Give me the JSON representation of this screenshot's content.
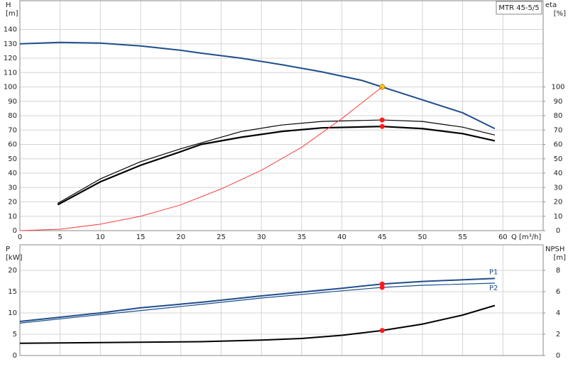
{
  "chart_data": [
    {
      "type": "line",
      "model": "MTR 45-5/5",
      "ylabel": "H",
      "yunit": "[m]",
      "y2label": "eta",
      "y2unit": "[%]",
      "xlabel": "Q [m³/h]",
      "xlim": [
        0,
        65
      ],
      "xticks": [
        0,
        5,
        10,
        15,
        20,
        25,
        30,
        35,
        40,
        45,
        50,
        55,
        60
      ],
      "ylim": [
        0,
        160
      ],
      "yticks": [
        0,
        10,
        20,
        30,
        40,
        50,
        60,
        70,
        80,
        90,
        100,
        110,
        120,
        130,
        140
      ],
      "y2lim": [
        0,
        160
      ],
      "y2ticks": [
        0,
        10,
        20,
        30,
        40,
        50,
        60,
        70,
        80,
        90,
        100
      ],
      "grid": true,
      "series": [
        {
          "color": "#1f4e8c",
          "width": 2,
          "x": [
            0,
            5,
            10,
            15,
            20,
            22.5,
            27.5,
            32.5,
            37.5,
            42.5,
            45,
            50,
            55,
            59
          ],
          "values": [
            130,
            131,
            130.5,
            128.5,
            125.5,
            123.5,
            120,
            115.5,
            110.5,
            104.5,
            100,
            91,
            82,
            71
          ],
          "marker_index": 10,
          "marker_color": "#ffd21f"
        },
        {
          "color": "#000000",
          "width": 1.2,
          "axis": "y2",
          "x": [
            4.7,
            10,
            15,
            20,
            22.5,
            27.5,
            32.5,
            37.5,
            45,
            50,
            55,
            59
          ],
          "values": [
            19,
            36,
            48,
            57,
            61,
            69,
            73.5,
            76,
            77,
            76,
            72,
            66.5
          ],
          "marker_index": 8,
          "marker_color": "#ff1a1a"
        },
        {
          "color": "#000000",
          "width": 2.2,
          "axis": "y2",
          "x": [
            4.7,
            10,
            15,
            20,
            22.5,
            27.5,
            32.5,
            37.5,
            45,
            50,
            55,
            59
          ],
          "values": [
            18,
            34,
            45.5,
            55,
            60,
            65,
            69,
            71.5,
            72.5,
            71,
            67.5,
            62.5
          ],
          "marker_index": 8,
          "marker_color": "#ff1a1a"
        },
        {
          "color": "#ff3b3b",
          "width": 1,
          "x": [
            0,
            5,
            10,
            15,
            20,
            25,
            30,
            35,
            40,
            45
          ],
          "values": [
            0,
            1,
            4.5,
            10,
            18,
            29,
            42,
            58,
            78,
            100
          ]
        }
      ]
    },
    {
      "type": "line",
      "ylabel": "P",
      "yunit": "[kW]",
      "y2label": "NPSH",
      "y2unit": "[m]",
      "xlim": [
        0,
        65
      ],
      "ylim": [
        0,
        26
      ],
      "yticks": [
        0,
        5,
        10,
        15,
        20
      ],
      "y2lim": [
        0,
        10.4
      ],
      "y2ticks": [
        0,
        2,
        4,
        6,
        8
      ],
      "grid": true,
      "series": [
        {
          "name": "P1",
          "color": "#1f4e8c",
          "width": 2,
          "x": [
            0,
            5,
            10,
            15,
            22.5,
            30,
            40,
            45,
            50,
            59
          ],
          "values": [
            8,
            9,
            10,
            11.2,
            12.5,
            14,
            15.8,
            16.8,
            17.4,
            18.1
          ],
          "marker_index": 7,
          "marker_color": "#ff1a1a"
        },
        {
          "name": "P2",
          "color": "#1f4e8c",
          "width": 1.2,
          "x": [
            0,
            10,
            22.5,
            30,
            40,
            45,
            50,
            59
          ],
          "values": [
            7.6,
            9.6,
            12,
            13.5,
            15.2,
            16,
            16.5,
            17
          ],
          "marker_index": 5,
          "marker_color": "#ff1a1a"
        },
        {
          "color": "#000000",
          "width": 2,
          "axis": "y2",
          "x": [
            0,
            22.5,
            30,
            35,
            40,
            45,
            50,
            55,
            59
          ],
          "values": [
            1.15,
            1.3,
            1.45,
            1.6,
            1.9,
            2.35,
            2.95,
            3.8,
            4.7
          ],
          "marker_index": 5,
          "marker_color": "#ff1a1a"
        }
      ]
    }
  ]
}
